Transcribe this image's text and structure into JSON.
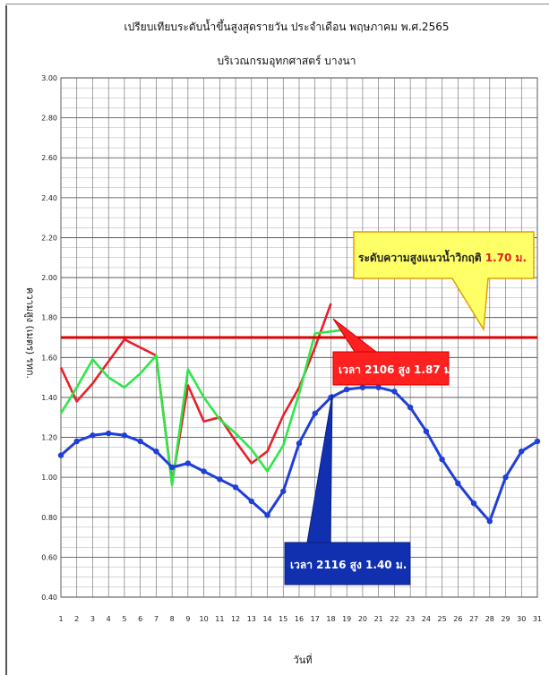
{
  "chart_data": {
    "type": "line",
    "title": "เปรียบเทียบระดับน้ำขึ้นสูงสุดรายวัน ประจำเดือน พฤษภาคม พ.ศ.2565",
    "subtitle": "บริเวณกรมอุทกศาสตร์ บางนา",
    "xlabel": "วันที่",
    "ylabel": "ความสูง (เมตร) รทก.",
    "x": [
      1,
      2,
      3,
      4,
      5,
      6,
      7,
      8,
      9,
      10,
      11,
      12,
      13,
      14,
      15,
      16,
      17,
      18,
      19,
      20,
      21,
      22,
      23,
      24,
      25,
      26,
      27,
      28,
      29,
      30,
      31
    ],
    "xlim": [
      1,
      31
    ],
    "ylim": [
      0.4,
      3.0
    ],
    "yticks": [
      "0.40",
      "0.60",
      "0.80",
      "1.00",
      "1.20",
      "1.40",
      "1.60",
      "1.80",
      "2.00",
      "2.20",
      "2.40",
      "2.60",
      "2.80",
      "3.00"
    ],
    "grid": true,
    "colors": {
      "red": "#e8202a",
      "green": "#2ee64a",
      "blue": "#1f3fd6",
      "critical": "#e00000",
      "callout_yellow": "#ffff66",
      "callout_red": "#ff2020",
      "callout_blue": "#1030b0"
    },
    "series": [
      {
        "values": [
          1.55,
          1.38,
          1.47,
          1.58,
          1.69,
          1.65,
          1.61,
          0.97,
          1.46,
          1.28,
          1.3,
          1.18,
          1.07,
          1.13,
          1.31,
          1.45,
          1.65,
          1.87,
          null,
          null,
          null,
          null,
          null,
          null,
          null,
          null,
          null,
          null,
          null,
          null,
          null
        ]
      },
      {
        "values": [
          1.32,
          1.45,
          1.59,
          1.5,
          1.45,
          1.52,
          1.61,
          0.96,
          1.54,
          1.4,
          1.29,
          1.22,
          1.14,
          1.03,
          1.16,
          1.42,
          1.72,
          1.73,
          1.74,
          null,
          null,
          null,
          null,
          null,
          null,
          null,
          null,
          null,
          null,
          null,
          null
        ]
      },
      {
        "values": [
          1.11,
          1.18,
          1.21,
          1.22,
          1.21,
          1.18,
          1.13,
          1.05,
          1.07,
          1.03,
          0.99,
          0.95,
          0.88,
          0.81,
          0.93,
          1.17,
          1.32,
          1.4,
          1.44,
          1.45,
          1.45,
          1.43,
          1.35,
          1.23,
          1.09,
          0.97,
          0.87,
          0.78,
          1.0,
          1.13,
          1.18
        ]
      }
    ],
    "reference_line": {
      "value": 1.7
    },
    "annotations": {
      "critical": {
        "text": "ระดับความสูงแนวน้ำวิกฤติ ",
        "value_text": "1.70 ม."
      },
      "red_peak": {
        "text": "เวลา 2106 สูง 1.87 ม."
      },
      "blue_peak": {
        "text": "เวลา 2116 สูง 1.40 ม."
      }
    }
  }
}
